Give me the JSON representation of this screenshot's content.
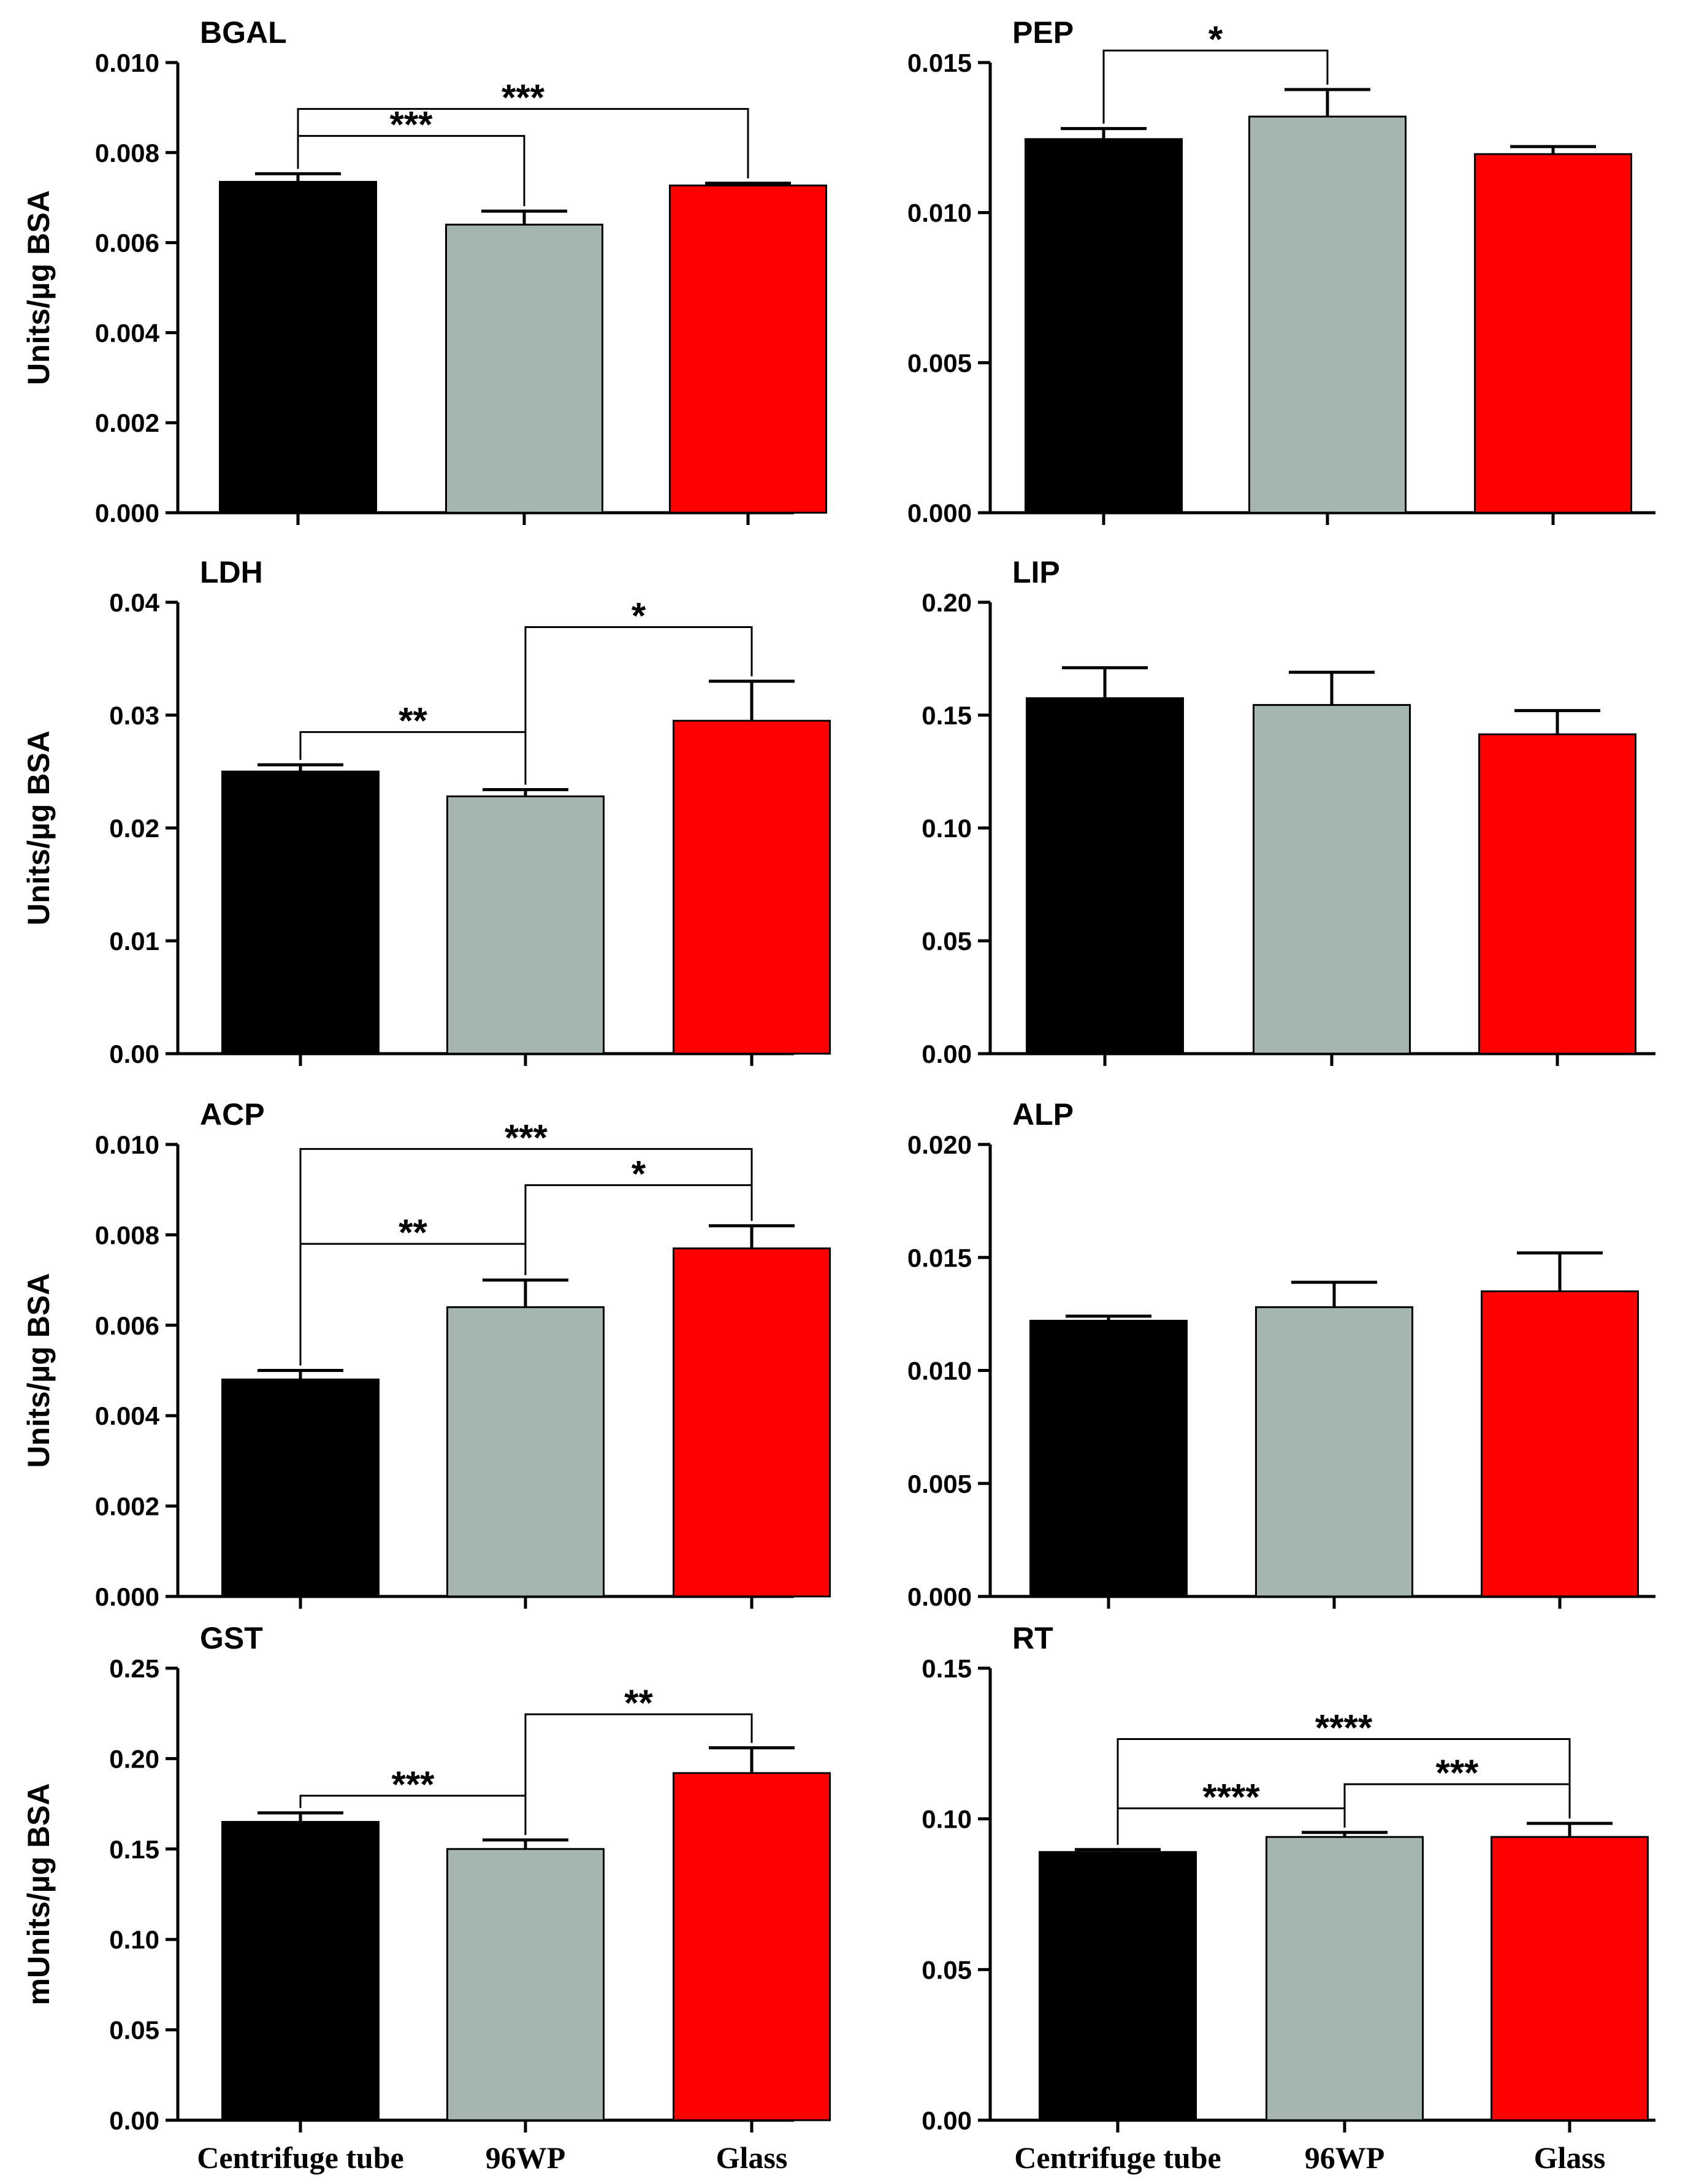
{
  "chart_data": [
    {
      "type": "bar",
      "title": "BGAL",
      "ylabel": "Units/µg BSA",
      "ylim": [
        0,
        0.01
      ],
      "yticks": [
        "0.000",
        "0.002",
        "0.004",
        "0.006",
        "0.008",
        "0.010"
      ],
      "categories": [
        "Centrifuge tube",
        "96WP",
        "Glass"
      ],
      "show_xlabels": false,
      "values": [
        0.00735,
        0.0064,
        0.00727
      ],
      "errors": [
        0.00018,
        0.0003,
        5e-05
      ],
      "colors": [
        "#000000",
        "#a5b5b1",
        "#ff0000"
      ],
      "significance": [
        {
          "from": 0,
          "to": 1,
          "label": "***",
          "y": 0.00837
        },
        {
          "from": 0,
          "to": 2,
          "label": "***",
          "y": 0.00897
        }
      ]
    },
    {
      "type": "bar",
      "title": "PEP",
      "ylabel": "",
      "ylim": [
        0,
        0.015
      ],
      "yticks": [
        "0.000",
        "0.005",
        "0.010",
        "0.015"
      ],
      "categories": [
        "Centrifuge tube",
        "96WP",
        "Glass"
      ],
      "show_xlabels": false,
      "values": [
        0.01245,
        0.0132,
        0.01195
      ],
      "errors": [
        0.00035,
        0.0009,
        0.00025
      ],
      "colors": [
        "#000000",
        "#a5b5b1",
        "#ff0000"
      ],
      "significance": [
        {
          "from": 0,
          "to": 1,
          "label": "*",
          "y": 0.0154
        }
      ]
    },
    {
      "type": "bar",
      "title": "LDH",
      "ylabel": "Units/µg BSA",
      "ylim": [
        0,
        0.04
      ],
      "yticks": [
        "0.00",
        "0.01",
        "0.02",
        "0.03",
        "0.04"
      ],
      "categories": [
        "Centrifuge tube",
        "96WP",
        "Glass"
      ],
      "show_xlabels": false,
      "values": [
        0.025,
        0.0228,
        0.0295
      ],
      "errors": [
        0.0006,
        0.0006,
        0.0035
      ],
      "colors": [
        "#000000",
        "#a5b5b1",
        "#ff0000"
      ],
      "significance": [
        {
          "from": 0,
          "to": 1,
          "label": "**",
          "y": 0.0285
        },
        {
          "from": 1,
          "to": 2,
          "label": "*",
          "y": 0.0378
        }
      ]
    },
    {
      "type": "bar",
      "title": "LIP",
      "ylabel": "",
      "ylim": [
        0,
        0.2
      ],
      "yticks": [
        "0.00",
        "0.05",
        "0.10",
        "0.15",
        "0.20"
      ],
      "categories": [
        "Centrifuge tube",
        "96WP",
        "Glass"
      ],
      "show_xlabels": false,
      "values": [
        0.1575,
        0.1545,
        0.1415
      ],
      "errors": [
        0.0135,
        0.0145,
        0.0105
      ],
      "colors": [
        "#000000",
        "#a5b5b1",
        "#ff0000"
      ],
      "significance": []
    },
    {
      "type": "bar",
      "title": "ACP",
      "ylabel": "Units/µg BSA",
      "ylim": [
        0,
        0.01
      ],
      "yticks": [
        "0.000",
        "0.002",
        "0.004",
        "0.006",
        "0.008",
        "0.010"
      ],
      "categories": [
        "Centrifuge tube",
        "96WP",
        "Glass"
      ],
      "show_xlabels": false,
      "values": [
        0.0048,
        0.0064,
        0.0077
      ],
      "errors": [
        0.0002,
        0.0006,
        0.0005
      ],
      "colors": [
        "#000000",
        "#a5b5b1",
        "#ff0000"
      ],
      "significance": [
        {
          "from": 0,
          "to": 1,
          "label": "**",
          "y": 0.0078
        },
        {
          "from": 1,
          "to": 2,
          "label": "*",
          "y": 0.0091
        },
        {
          "from": 0,
          "to": 2,
          "label": "***",
          "y": 0.0099
        }
      ]
    },
    {
      "type": "bar",
      "title": "ALP",
      "ylabel": "",
      "ylim": [
        0,
        0.02
      ],
      "yticks": [
        "0.000",
        "0.005",
        "0.010",
        "0.015",
        "0.020"
      ],
      "categories": [
        "Centrifuge tube",
        "96WP",
        "Glass"
      ],
      "show_xlabels": false,
      "values": [
        0.0122,
        0.0128,
        0.0135
      ],
      "errors": [
        0.0002,
        0.0011,
        0.0017
      ],
      "colors": [
        "#000000",
        "#a5b5b1",
        "#ff0000"
      ],
      "significance": []
    },
    {
      "type": "bar",
      "title": "GST",
      "ylabel": "mUnits/µg BSA",
      "ylim": [
        0,
        0.25
      ],
      "yticks": [
        "0.00",
        "0.05",
        "0.10",
        "0.15",
        "0.20",
        "0.25"
      ],
      "categories": [
        "Centrifuge tube",
        "96WP",
        "Glass"
      ],
      "show_xlabels": true,
      "values": [
        0.165,
        0.15,
        0.192
      ],
      "errors": [
        0.005,
        0.005,
        0.014
      ],
      "colors": [
        "#000000",
        "#a5b5b1",
        "#ff0000"
      ],
      "significance": [
        {
          "from": 0,
          "to": 1,
          "label": "***",
          "y": 0.1795
        },
        {
          "from": 1,
          "to": 2,
          "label": "**",
          "y": 0.2245
        }
      ]
    },
    {
      "type": "bar",
      "title": "RT",
      "ylabel": "",
      "ylim": [
        0,
        0.15
      ],
      "yticks": [
        "0.00",
        "0.05",
        "0.10",
        "0.15"
      ],
      "categories": [
        "Centrifuge tube",
        "96WP",
        "Glass"
      ],
      "show_xlabels": true,
      "values": [
        0.089,
        0.094,
        0.094
      ],
      "errors": [
        0.0008,
        0.0015,
        0.0045
      ],
      "colors": [
        "#000000",
        "#a5b5b1",
        "#ff0000"
      ],
      "significance": [
        {
          "from": 0,
          "to": 1,
          "label": "****",
          "y": 0.1035
        },
        {
          "from": 1,
          "to": 2,
          "label": "***",
          "y": 0.1115
        },
        {
          "from": 0,
          "to": 2,
          "label": "****",
          "y": 0.1265
        }
      ]
    }
  ]
}
